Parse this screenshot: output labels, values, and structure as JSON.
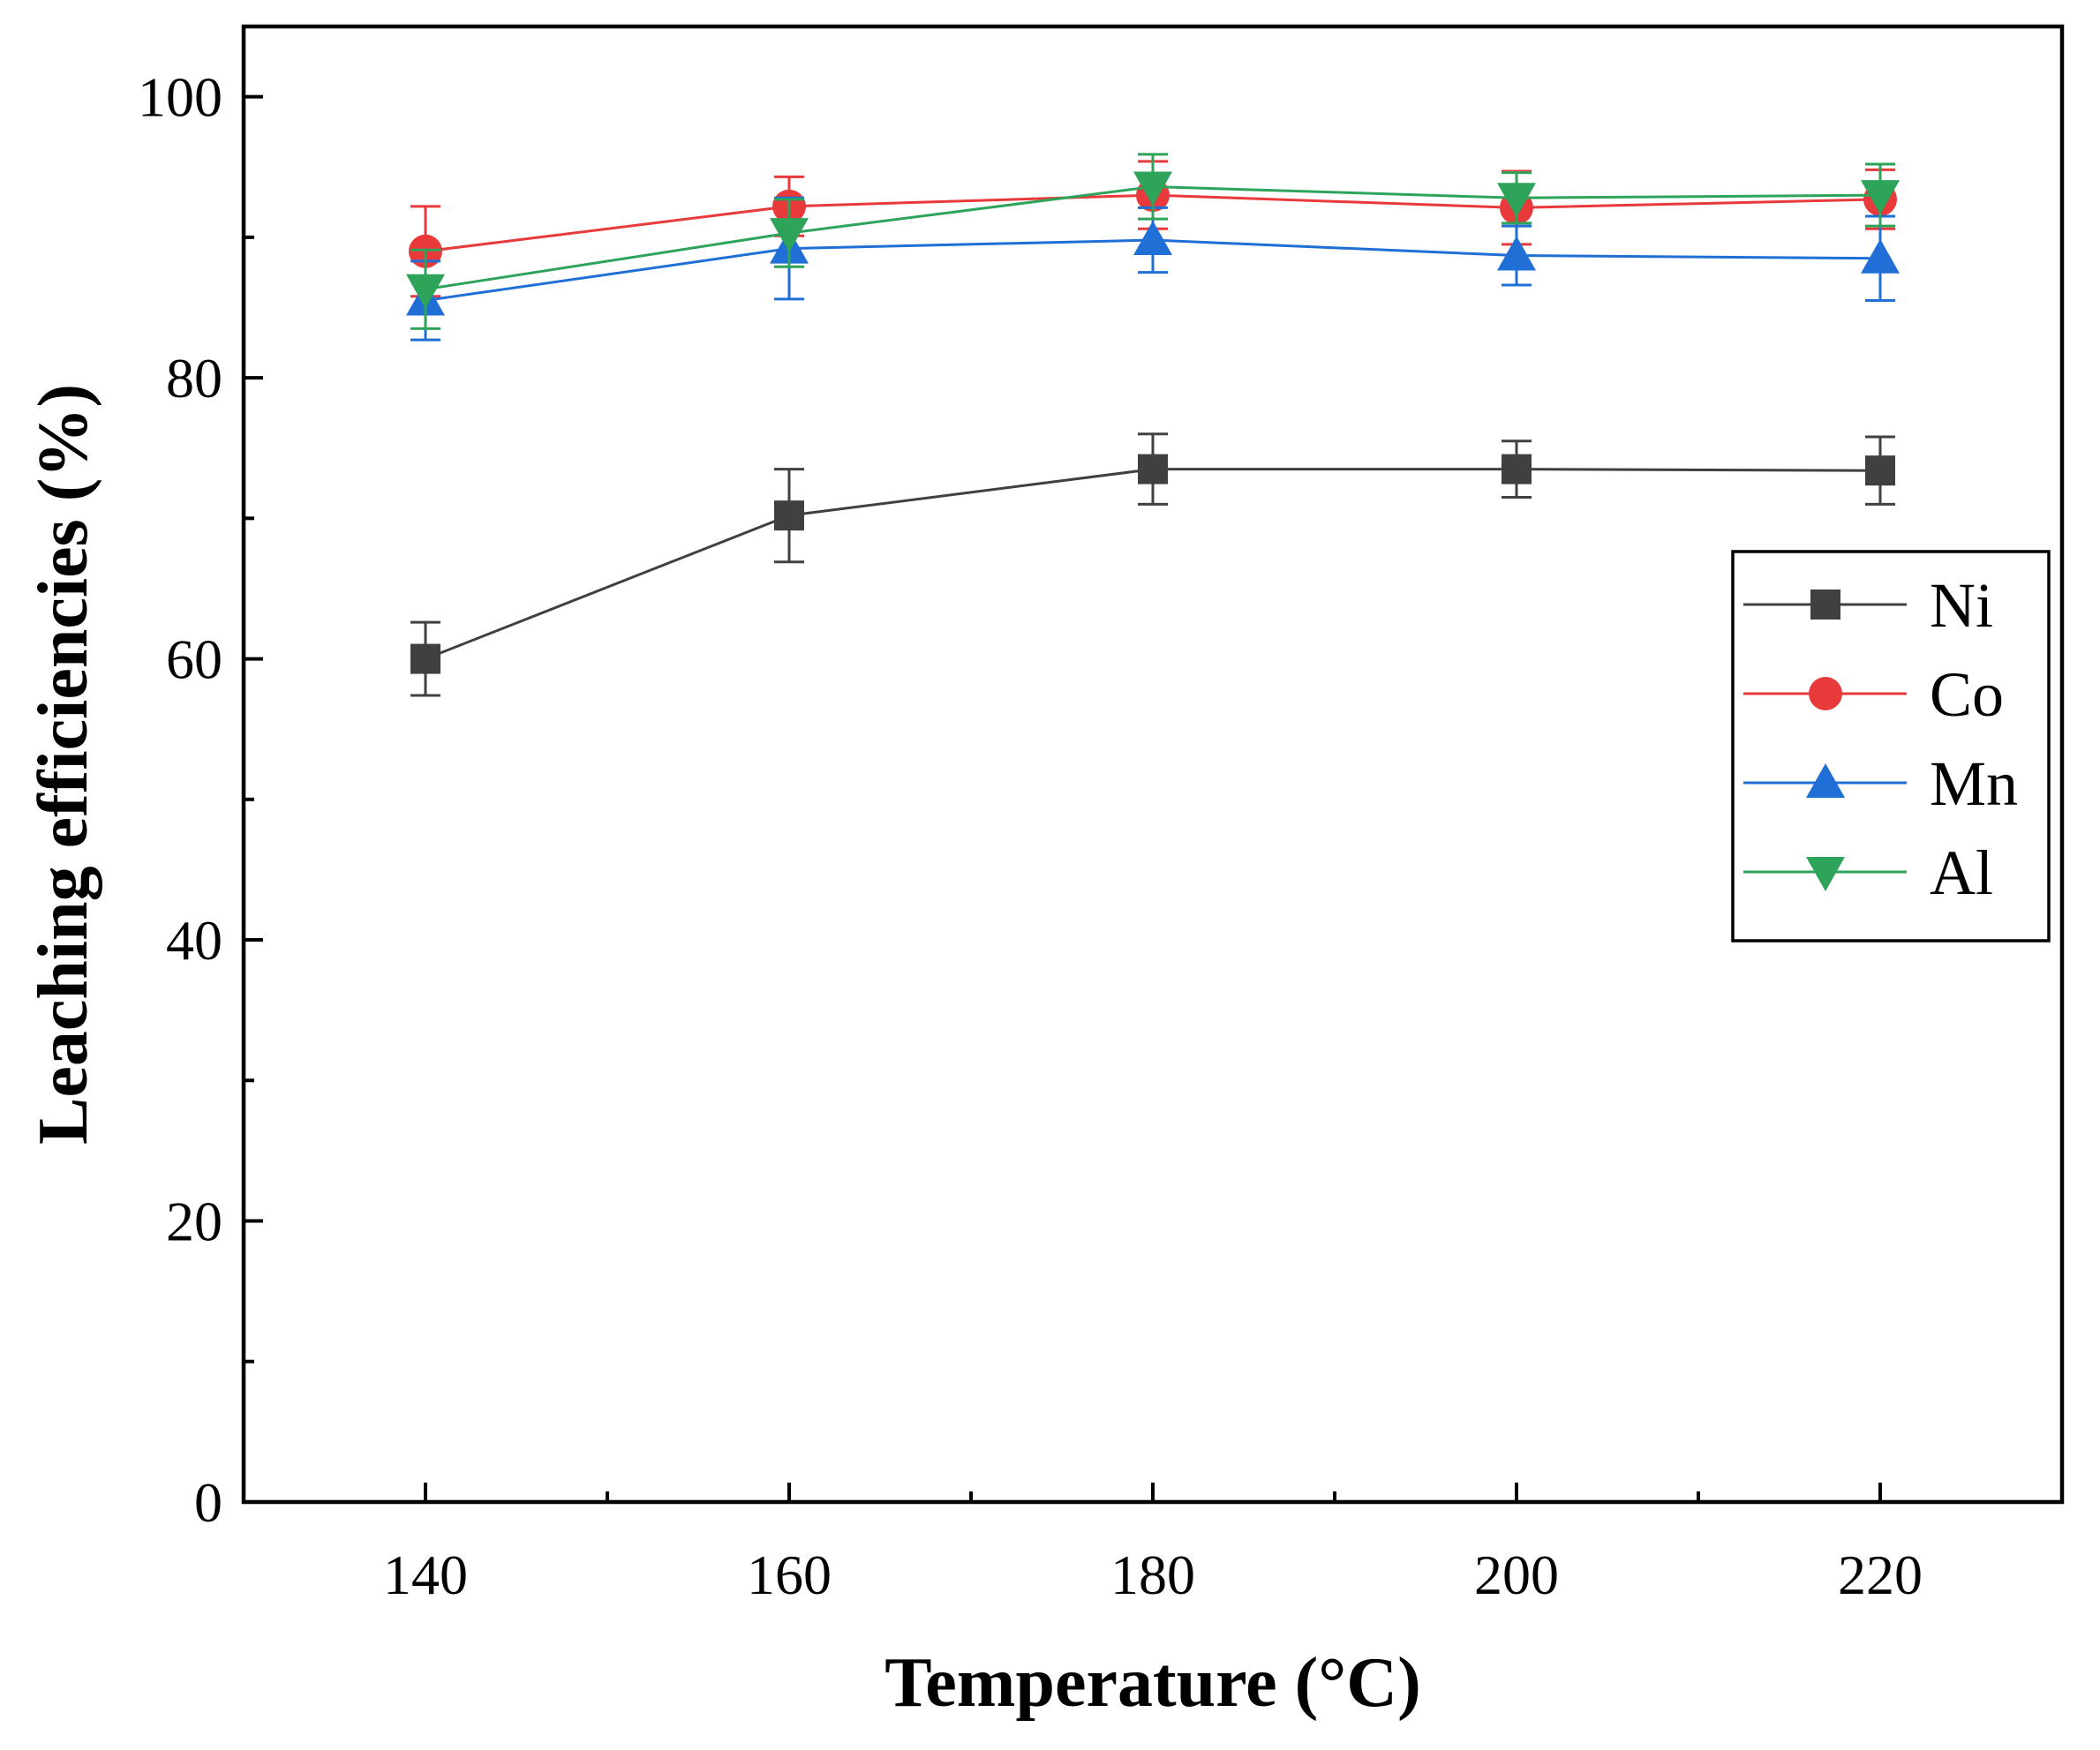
{
  "chart_data": {
    "type": "line",
    "title": "",
    "xlabel": "Temperature (°C)",
    "ylabel": "Leaching efficiencies (%)",
    "xlim": [
      130,
      230
    ],
    "ylim": [
      0,
      105
    ],
    "x_ticks": [
      140,
      160,
      180,
      200,
      220
    ],
    "x_minor_ticks": [
      150,
      170,
      190,
      210
    ],
    "y_ticks": [
      0,
      20,
      40,
      60,
      80,
      100
    ],
    "y_minor_ticks": [
      10,
      30,
      50,
      70,
      90
    ],
    "grid": false,
    "legend_position": "right",
    "x": [
      140,
      160,
      180,
      200,
      220
    ],
    "series": [
      {
        "name": "Ni",
        "marker": "square",
        "color": "#404040",
        "values": [
          60.0,
          70.2,
          73.5,
          73.5,
          73.4
        ],
        "errors": [
          2.6,
          3.3,
          2.5,
          2.0,
          2.4
        ]
      },
      {
        "name": "Co",
        "marker": "circle",
        "color": "#e8393b",
        "values": [
          89.0,
          92.2,
          93.0,
          92.1,
          92.7
        ],
        "errors": [
          3.2,
          2.1,
          2.4,
          2.6,
          2.1
        ]
      },
      {
        "name": "Mn",
        "marker": "triangle-up",
        "color": "#1f6fd6",
        "values": [
          85.5,
          89.2,
          89.8,
          88.7,
          88.5
        ],
        "errors": [
          2.8,
          3.6,
          2.3,
          2.1,
          3.0
        ]
      },
      {
        "name": "Al",
        "marker": "triangle-down",
        "color": "#2ea35a",
        "values": [
          86.3,
          90.3,
          93.6,
          92.8,
          93.0
        ],
        "errors": [
          2.8,
          2.4,
          2.3,
          1.8,
          2.2
        ]
      }
    ]
  }
}
